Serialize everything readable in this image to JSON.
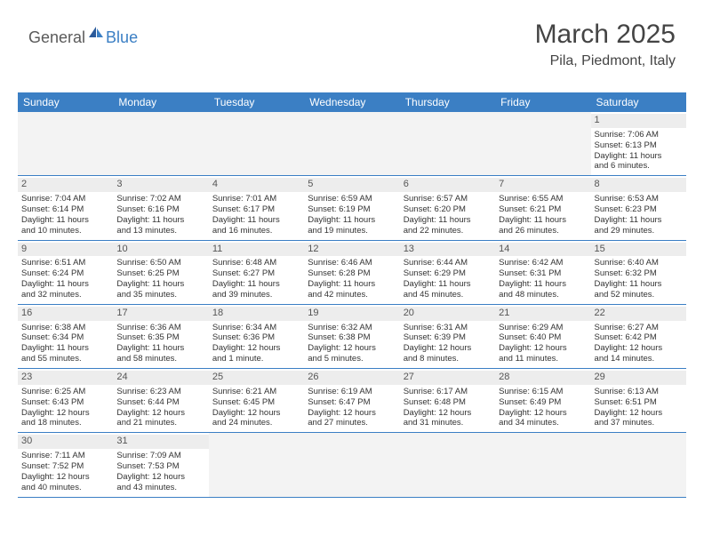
{
  "logo": {
    "text1": "General",
    "text2": "Blue"
  },
  "title": "March 2025",
  "location": "Pila, Piedmont, Italy",
  "colors": {
    "header_bg": "#3b7fc4",
    "header_fg": "#ffffff",
    "grid_line": "#3b7fc4",
    "daynum_bg": "#ededed",
    "empty_bg": "#f3f3f3",
    "text": "#333333"
  },
  "day_names": [
    "Sunday",
    "Monday",
    "Tuesday",
    "Wednesday",
    "Thursday",
    "Friday",
    "Saturday"
  ],
  "weeks": [
    [
      null,
      null,
      null,
      null,
      null,
      null,
      {
        "n": "1",
        "sr": "Sunrise: 7:06 AM",
        "ss": "Sunset: 6:13 PM",
        "d1": "Daylight: 11 hours",
        "d2": "and 6 minutes."
      }
    ],
    [
      {
        "n": "2",
        "sr": "Sunrise: 7:04 AM",
        "ss": "Sunset: 6:14 PM",
        "d1": "Daylight: 11 hours",
        "d2": "and 10 minutes."
      },
      {
        "n": "3",
        "sr": "Sunrise: 7:02 AM",
        "ss": "Sunset: 6:16 PM",
        "d1": "Daylight: 11 hours",
        "d2": "and 13 minutes."
      },
      {
        "n": "4",
        "sr": "Sunrise: 7:01 AM",
        "ss": "Sunset: 6:17 PM",
        "d1": "Daylight: 11 hours",
        "d2": "and 16 minutes."
      },
      {
        "n": "5",
        "sr": "Sunrise: 6:59 AM",
        "ss": "Sunset: 6:19 PM",
        "d1": "Daylight: 11 hours",
        "d2": "and 19 minutes."
      },
      {
        "n": "6",
        "sr": "Sunrise: 6:57 AM",
        "ss": "Sunset: 6:20 PM",
        "d1": "Daylight: 11 hours",
        "d2": "and 22 minutes."
      },
      {
        "n": "7",
        "sr": "Sunrise: 6:55 AM",
        "ss": "Sunset: 6:21 PM",
        "d1": "Daylight: 11 hours",
        "d2": "and 26 minutes."
      },
      {
        "n": "8",
        "sr": "Sunrise: 6:53 AM",
        "ss": "Sunset: 6:23 PM",
        "d1": "Daylight: 11 hours",
        "d2": "and 29 minutes."
      }
    ],
    [
      {
        "n": "9",
        "sr": "Sunrise: 6:51 AM",
        "ss": "Sunset: 6:24 PM",
        "d1": "Daylight: 11 hours",
        "d2": "and 32 minutes."
      },
      {
        "n": "10",
        "sr": "Sunrise: 6:50 AM",
        "ss": "Sunset: 6:25 PM",
        "d1": "Daylight: 11 hours",
        "d2": "and 35 minutes."
      },
      {
        "n": "11",
        "sr": "Sunrise: 6:48 AM",
        "ss": "Sunset: 6:27 PM",
        "d1": "Daylight: 11 hours",
        "d2": "and 39 minutes."
      },
      {
        "n": "12",
        "sr": "Sunrise: 6:46 AM",
        "ss": "Sunset: 6:28 PM",
        "d1": "Daylight: 11 hours",
        "d2": "and 42 minutes."
      },
      {
        "n": "13",
        "sr": "Sunrise: 6:44 AM",
        "ss": "Sunset: 6:29 PM",
        "d1": "Daylight: 11 hours",
        "d2": "and 45 minutes."
      },
      {
        "n": "14",
        "sr": "Sunrise: 6:42 AM",
        "ss": "Sunset: 6:31 PM",
        "d1": "Daylight: 11 hours",
        "d2": "and 48 minutes."
      },
      {
        "n": "15",
        "sr": "Sunrise: 6:40 AM",
        "ss": "Sunset: 6:32 PM",
        "d1": "Daylight: 11 hours",
        "d2": "and 52 minutes."
      }
    ],
    [
      {
        "n": "16",
        "sr": "Sunrise: 6:38 AM",
        "ss": "Sunset: 6:34 PM",
        "d1": "Daylight: 11 hours",
        "d2": "and 55 minutes."
      },
      {
        "n": "17",
        "sr": "Sunrise: 6:36 AM",
        "ss": "Sunset: 6:35 PM",
        "d1": "Daylight: 11 hours",
        "d2": "and 58 minutes."
      },
      {
        "n": "18",
        "sr": "Sunrise: 6:34 AM",
        "ss": "Sunset: 6:36 PM",
        "d1": "Daylight: 12 hours",
        "d2": "and 1 minute."
      },
      {
        "n": "19",
        "sr": "Sunrise: 6:32 AM",
        "ss": "Sunset: 6:38 PM",
        "d1": "Daylight: 12 hours",
        "d2": "and 5 minutes."
      },
      {
        "n": "20",
        "sr": "Sunrise: 6:31 AM",
        "ss": "Sunset: 6:39 PM",
        "d1": "Daylight: 12 hours",
        "d2": "and 8 minutes."
      },
      {
        "n": "21",
        "sr": "Sunrise: 6:29 AM",
        "ss": "Sunset: 6:40 PM",
        "d1": "Daylight: 12 hours",
        "d2": "and 11 minutes."
      },
      {
        "n": "22",
        "sr": "Sunrise: 6:27 AM",
        "ss": "Sunset: 6:42 PM",
        "d1": "Daylight: 12 hours",
        "d2": "and 14 minutes."
      }
    ],
    [
      {
        "n": "23",
        "sr": "Sunrise: 6:25 AM",
        "ss": "Sunset: 6:43 PM",
        "d1": "Daylight: 12 hours",
        "d2": "and 18 minutes."
      },
      {
        "n": "24",
        "sr": "Sunrise: 6:23 AM",
        "ss": "Sunset: 6:44 PM",
        "d1": "Daylight: 12 hours",
        "d2": "and 21 minutes."
      },
      {
        "n": "25",
        "sr": "Sunrise: 6:21 AM",
        "ss": "Sunset: 6:45 PM",
        "d1": "Daylight: 12 hours",
        "d2": "and 24 minutes."
      },
      {
        "n": "26",
        "sr": "Sunrise: 6:19 AM",
        "ss": "Sunset: 6:47 PM",
        "d1": "Daylight: 12 hours",
        "d2": "and 27 minutes."
      },
      {
        "n": "27",
        "sr": "Sunrise: 6:17 AM",
        "ss": "Sunset: 6:48 PM",
        "d1": "Daylight: 12 hours",
        "d2": "and 31 minutes."
      },
      {
        "n": "28",
        "sr": "Sunrise: 6:15 AM",
        "ss": "Sunset: 6:49 PM",
        "d1": "Daylight: 12 hours",
        "d2": "and 34 minutes."
      },
      {
        "n": "29",
        "sr": "Sunrise: 6:13 AM",
        "ss": "Sunset: 6:51 PM",
        "d1": "Daylight: 12 hours",
        "d2": "and 37 minutes."
      }
    ],
    [
      {
        "n": "30",
        "sr": "Sunrise: 7:11 AM",
        "ss": "Sunset: 7:52 PM",
        "d1": "Daylight: 12 hours",
        "d2": "and 40 minutes."
      },
      {
        "n": "31",
        "sr": "Sunrise: 7:09 AM",
        "ss": "Sunset: 7:53 PM",
        "d1": "Daylight: 12 hours",
        "d2": "and 43 minutes."
      },
      null,
      null,
      null,
      null,
      null
    ]
  ]
}
